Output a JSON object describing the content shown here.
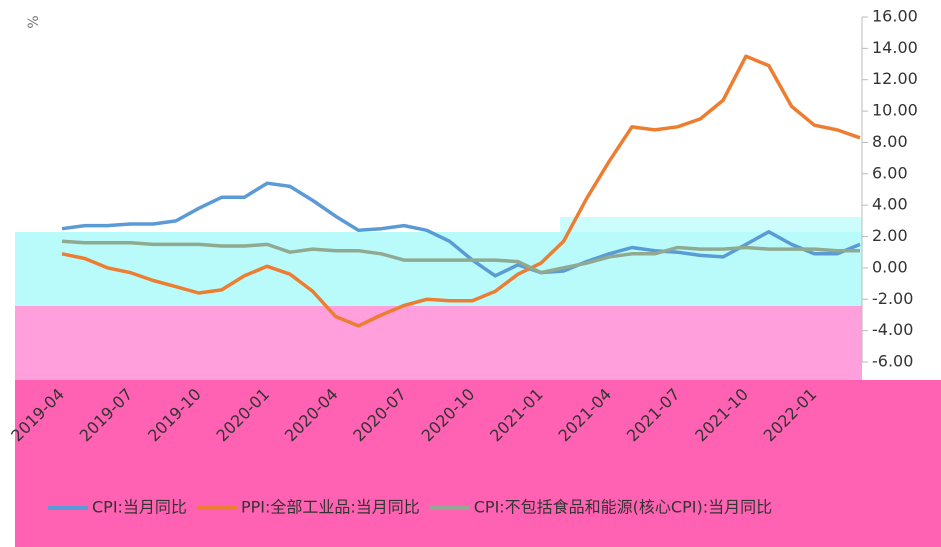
{
  "chart_data": {
    "type": "line",
    "y_label": "%",
    "categories": [
      "2019-04",
      null,
      null,
      "2019-07",
      null,
      null,
      "2019-10",
      null,
      null,
      "2020-01",
      null,
      null,
      "2020-04",
      null,
      null,
      "2020-07",
      null,
      null,
      "2020-10",
      null,
      null,
      "2021-01",
      null,
      null,
      "2021-04",
      null,
      null,
      "2021-07",
      null,
      null,
      "2021-10",
      null,
      null,
      "2022-01",
      null,
      null
    ],
    "series": [
      {
        "name": "CPI:当月同比",
        "color": "#5b9bd5",
        "values": [
          2.5,
          2.7,
          2.7,
          2.8,
          2.8,
          3.0,
          3.8,
          4.5,
          4.5,
          5.4,
          5.2,
          4.3,
          3.3,
          2.4,
          2.5,
          2.7,
          2.4,
          1.7,
          0.5,
          -0.5,
          0.2,
          -0.3,
          -0.2,
          0.4,
          0.9,
          1.3,
          1.1,
          1.0,
          0.8,
          0.7,
          1.5,
          2.3,
          1.5,
          0.9,
          0.9,
          1.5
        ]
      },
      {
        "name": "PPI:全部工业品:当月同比",
        "color": "#ed7d31",
        "values": [
          0.9,
          0.6,
          0.0,
          -0.3,
          -0.8,
          -1.2,
          -1.6,
          -1.4,
          -0.5,
          0.1,
          -0.4,
          -1.5,
          -3.1,
          -3.7,
          -3.0,
          -2.4,
          -2.0,
          -2.1,
          -2.1,
          -1.5,
          -0.4,
          0.3,
          1.7,
          4.4,
          6.8,
          9.0,
          8.8,
          9.0,
          9.5,
          10.7,
          13.5,
          12.9,
          10.3,
          9.1,
          8.8,
          8.3
        ]
      },
      {
        "name": "CPI:不包括食品和能源(核心CPI):当月同比",
        "color": "#8faa91",
        "values": [
          1.7,
          1.6,
          1.6,
          1.6,
          1.5,
          1.5,
          1.5,
          1.4,
          1.4,
          1.5,
          1.0,
          1.2,
          1.1,
          1.1,
          0.9,
          0.5,
          0.5,
          0.5,
          0.5,
          0.5,
          0.4,
          -0.3,
          0.0,
          0.3,
          0.7,
          0.9,
          0.9,
          1.3,
          1.2,
          1.2,
          1.3,
          1.2,
          1.2,
          1.2,
          1.1,
          1.1
        ]
      }
    ],
    "ylim": [
      -6,
      16
    ],
    "yticks": [
      {
        "value": -6,
        "label": "-6.00"
      },
      {
        "value": -4,
        "label": "-4.00"
      },
      {
        "value": -2,
        "label": "-2.00"
      },
      {
        "value": 0,
        "label": "0.00"
      },
      {
        "value": 2,
        "label": "2.00"
      },
      {
        "value": 4,
        "label": "4.00"
      },
      {
        "value": 6,
        "label": "6.00"
      },
      {
        "value": 8,
        "label": "8.00"
      },
      {
        "value": 10,
        "label": "10.00"
      },
      {
        "value": 12,
        "label": "12.00"
      },
      {
        "value": 14,
        "label": "14.00"
      },
      {
        "value": 16,
        "label": "16.00"
      }
    ],
    "grid": false,
    "legend": "bottom"
  }
}
